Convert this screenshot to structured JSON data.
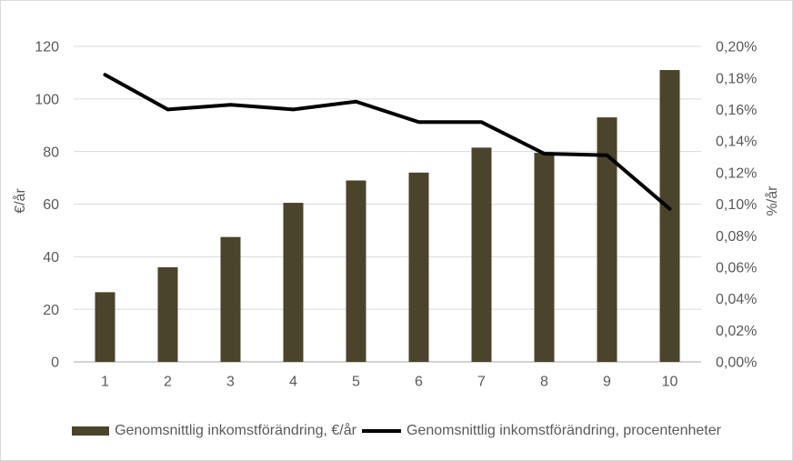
{
  "chart_data": {
    "type": "bar",
    "subtype": "combo-bar-line-dual-axis",
    "categories": [
      "1",
      "2",
      "3",
      "4",
      "5",
      "6",
      "7",
      "8",
      "9",
      "10"
    ],
    "series": [
      {
        "name": "Genomsnittlig inkomstförändring, €/år",
        "type": "bar",
        "axis": "left",
        "color": "#4a442b",
        "values": [
          26.5,
          36,
          47.5,
          60.5,
          69,
          72,
          81.5,
          79.5,
          93,
          111
        ]
      },
      {
        "name": "Genomsnittlig inkomstförändring, procentenheter",
        "type": "line",
        "axis": "right",
        "color": "#000000",
        "values": [
          0.182,
          0.16,
          0.163,
          0.16,
          0.165,
          0.152,
          0.152,
          0.132,
          0.131,
          0.097
        ]
      }
    ],
    "left_axis": {
      "label": "€/år",
      "min": 0,
      "max": 120,
      "step": 20,
      "ticks": [
        "0",
        "20",
        "40",
        "60",
        "80",
        "100",
        "120"
      ]
    },
    "right_axis": {
      "label": "%/år",
      "min": 0,
      "max": 0.2,
      "step": 0.02,
      "ticks": [
        "0,00%",
        "0,02%",
        "0,04%",
        "0,06%",
        "0,08%",
        "0,10%",
        "0,12%",
        "0,14%",
        "0,16%",
        "0,18%",
        "0,20%"
      ]
    },
    "grid": true,
    "legend_position": "bottom",
    "title": "",
    "xlabel": ""
  },
  "colors": {
    "gridline": "#d9d9d9",
    "axis_line": "#d2d2d2",
    "tick_text": "#595959",
    "background": "#ffffff",
    "border": "#d9d9d9"
  }
}
